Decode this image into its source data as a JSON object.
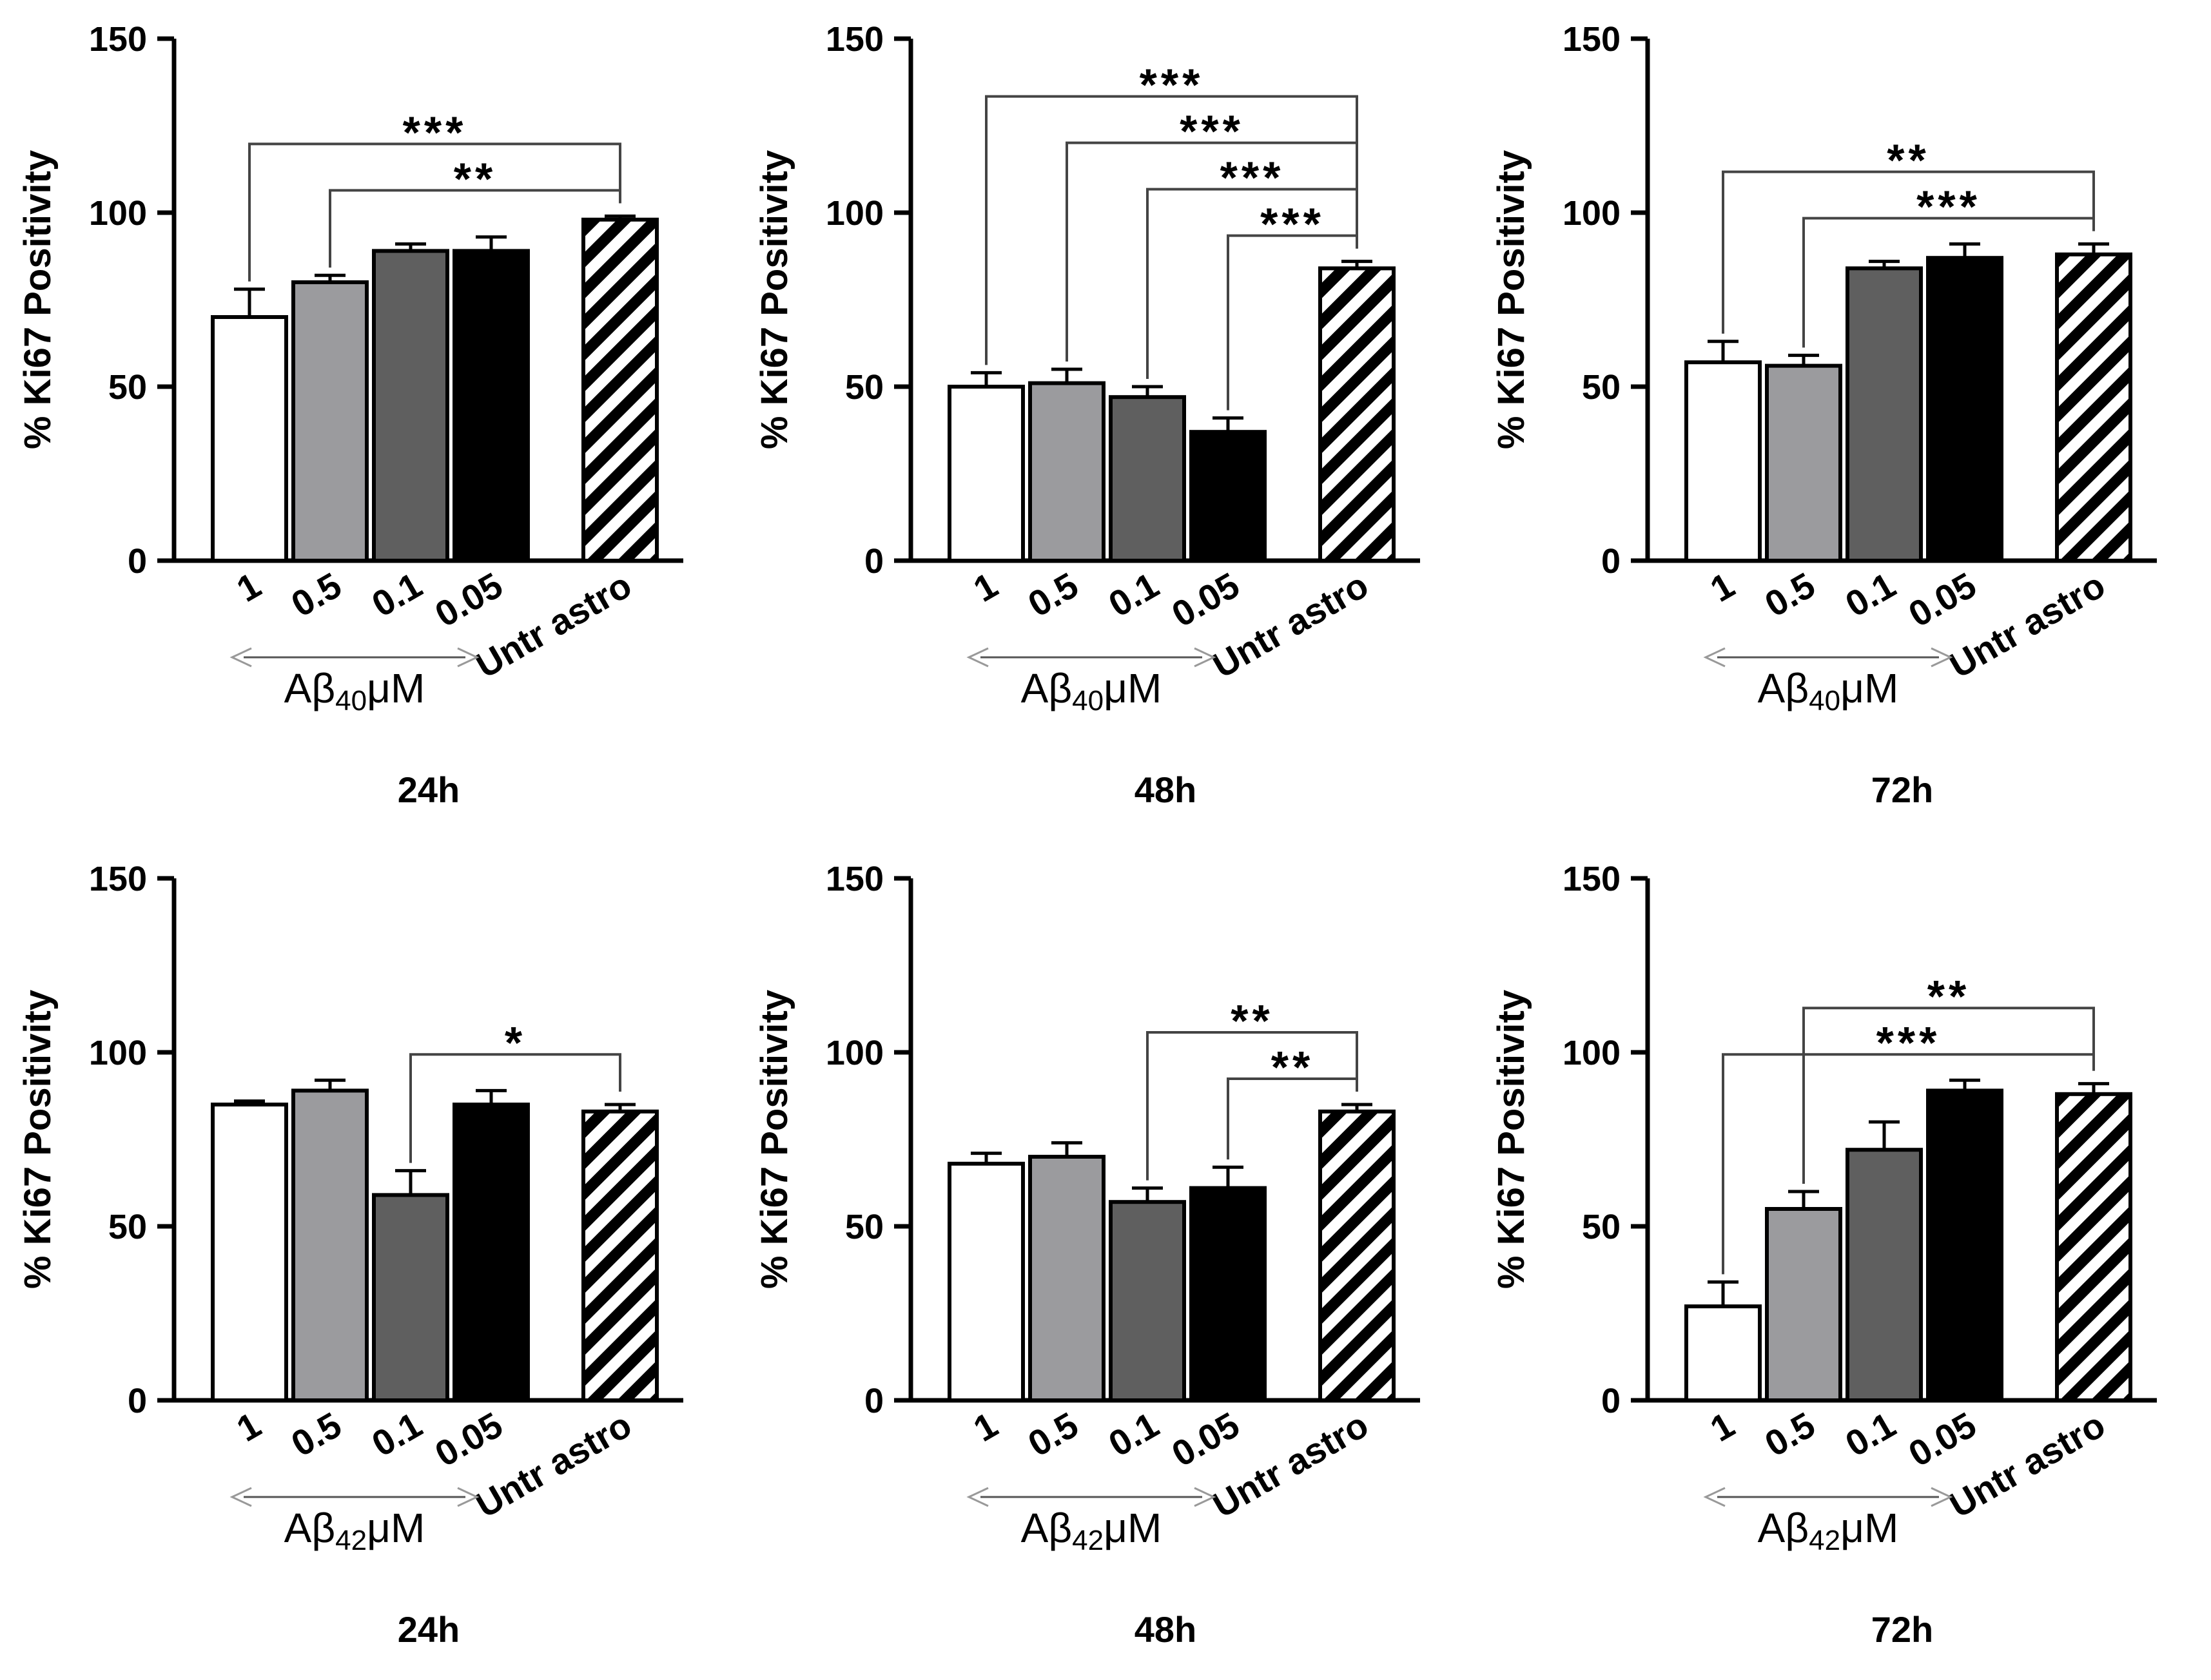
{
  "chart_data": [
    {
      "type": "bar",
      "title": "24h",
      "ylabel": "% Ki67 Positivity",
      "ylim": [
        0,
        150
      ],
      "yticks": [
        "0",
        "50",
        "100",
        "150"
      ],
      "categories": [
        "1",
        "0.5",
        "0.1",
        "0.05",
        "Untr astro"
      ],
      "group_label": "Aβ40μM",
      "values": [
        70,
        80,
        89,
        89,
        98
      ],
      "errors": [
        8,
        2,
        2,
        4,
        1
      ],
      "colors": [
        "#ffffff",
        "#9b9b9e",
        "#5f5f5f",
        "#000000",
        "hatch"
      ],
      "significance": [
        {
          "from": 0,
          "to": 4,
          "label": "***"
        },
        {
          "from": 1,
          "to": 4,
          "label": "**"
        }
      ]
    },
    {
      "type": "bar",
      "title": "48h",
      "ylabel": "% Ki67 Positivity",
      "ylim": [
        0,
        150
      ],
      "yticks": [
        "0",
        "50",
        "100",
        "150"
      ],
      "categories": [
        "1",
        "0.5",
        "0.1",
        "0.05",
        "Untr astro"
      ],
      "group_label": "Aβ40μM",
      "values": [
        50,
        51,
        47,
        37,
        84
      ],
      "errors": [
        4,
        4,
        3,
        4,
        2
      ],
      "colors": [
        "#ffffff",
        "#9b9b9e",
        "#5f5f5f",
        "#000000",
        "hatch"
      ],
      "significance": [
        {
          "from": 0,
          "to": 4,
          "label": "***"
        },
        {
          "from": 1,
          "to": 4,
          "label": "***"
        },
        {
          "from": 2,
          "to": 4,
          "label": "***"
        },
        {
          "from": 3,
          "to": 4,
          "label": "***"
        }
      ]
    },
    {
      "type": "bar",
      "title": "72h",
      "ylabel": "% Ki67 Positivity",
      "ylim": [
        0,
        150
      ],
      "yticks": [
        "0",
        "50",
        "100",
        "150"
      ],
      "categories": [
        "1",
        "0.5",
        "0.1",
        "0.05",
        "Untr astro"
      ],
      "group_label": "Aβ40μM",
      "values": [
        57,
        56,
        84,
        87,
        88
      ],
      "errors": [
        6,
        3,
        2,
        4,
        3
      ],
      "colors": [
        "#ffffff",
        "#9b9b9e",
        "#5f5f5f",
        "#000000",
        "hatch"
      ],
      "significance": [
        {
          "from": 0,
          "to": 4,
          "label": "**"
        },
        {
          "from": 1,
          "to": 4,
          "label": "***"
        }
      ]
    },
    {
      "type": "bar",
      "title": "24h",
      "ylabel": "% Ki67 Positivity",
      "ylim": [
        0,
        150
      ],
      "yticks": [
        "0",
        "50",
        "100",
        "150"
      ],
      "categories": [
        "1",
        "0.5",
        "0.1",
        "0.05",
        "Untr astro"
      ],
      "group_label": "Aβ42μM",
      "values": [
        85,
        89,
        59,
        85,
        83
      ],
      "errors": [
        1,
        3,
        7,
        4,
        2
      ],
      "colors": [
        "#ffffff",
        "#9b9b9e",
        "#5f5f5f",
        "#000000",
        "hatch"
      ],
      "significance": [
        {
          "from": 2,
          "to": 4,
          "label": "*"
        }
      ]
    },
    {
      "type": "bar",
      "title": "48h",
      "ylabel": "% Ki67 Positivity",
      "ylim": [
        0,
        150
      ],
      "yticks": [
        "0",
        "50",
        "100",
        "150"
      ],
      "categories": [
        "1",
        "0.5",
        "0.1",
        "0.05",
        "Untr astro"
      ],
      "group_label": "Aβ42μM",
      "values": [
        68,
        70,
        57,
        61,
        83
      ],
      "errors": [
        3,
        4,
        4,
        6,
        2
      ],
      "colors": [
        "#ffffff",
        "#9b9b9e",
        "#5f5f5f",
        "#000000",
        "hatch"
      ],
      "significance": [
        {
          "from": 2,
          "to": 4,
          "label": "**"
        },
        {
          "from": 3,
          "to": 4,
          "label": "**"
        }
      ]
    },
    {
      "type": "bar",
      "title": "72h",
      "ylabel": "% Ki67 Positivity",
      "ylim": [
        0,
        150
      ],
      "yticks": [
        "0",
        "50",
        "100",
        "150"
      ],
      "categories": [
        "1",
        "0.5",
        "0.1",
        "0.05",
        "Untr astro"
      ],
      "group_label": "Aβ42μM",
      "values": [
        27,
        55,
        72,
        89,
        88
      ],
      "errors": [
        7,
        5,
        8,
        3,
        3
      ],
      "colors": [
        "#ffffff",
        "#9b9b9e",
        "#5f5f5f",
        "#000000",
        "hatch"
      ],
      "significance": [
        {
          "from": 1,
          "to": 4,
          "label": "**"
        },
        {
          "from": 0,
          "to": 4,
          "label": "***"
        }
      ]
    }
  ]
}
